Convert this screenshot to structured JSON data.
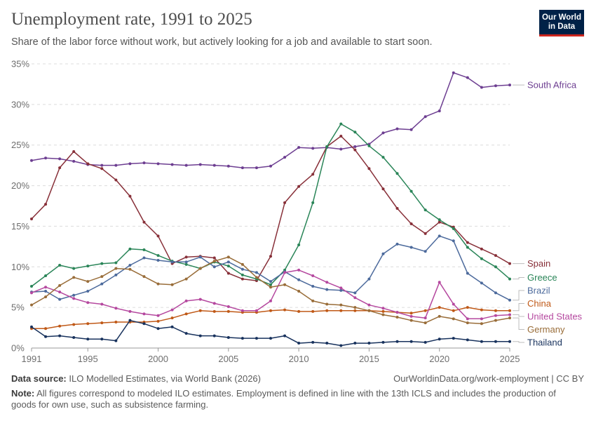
{
  "header": {
    "title": "Unemployment rate, 1991 to 2025",
    "subtitle": "Share of the labor force without work, but actively looking for a job and available to start soon.",
    "logo_line1": "Our World",
    "logo_line2": "in Data"
  },
  "footer": {
    "source_label": "Data source:",
    "source_text": "ILO Modelled Estimates, via World Bank (2026)",
    "url": "OurWorldinData.org/work-employment | CC BY",
    "note_label": "Note:",
    "note_text": "All figures correspond to modeled ILO estimates. Employment is defined in line with the 13th ICLS and includes the production of goods for own use, such as subsistence farming."
  },
  "chart_data": {
    "type": "line",
    "title": "Unemployment rate, 1991 to 2025",
    "xlabel": "",
    "ylabel": "",
    "xlim": [
      1991,
      2025
    ],
    "ylim": [
      0,
      35
    ],
    "grid": true,
    "legend": "right (labels at line ends)",
    "x_ticks": [
      "1991",
      "1995",
      "2000",
      "2005",
      "2010",
      "2015",
      "2020",
      "2025"
    ],
    "y_ticks": [
      "0%",
      "5%",
      "10%",
      "15%",
      "20%",
      "25%",
      "30%",
      "35%"
    ],
    "x": [
      1991,
      1992,
      1993,
      1994,
      1995,
      1996,
      1997,
      1998,
      1999,
      2000,
      2001,
      2002,
      2003,
      2004,
      2005,
      2006,
      2007,
      2008,
      2009,
      2010,
      2011,
      2012,
      2013,
      2014,
      2015,
      2016,
      2017,
      2018,
      2019,
      2020,
      2021,
      2022,
      2023,
      2024,
      2025
    ],
    "series": [
      {
        "name": "South Africa",
        "color": "#6d3e91",
        "values": [
          23.1,
          23.4,
          23.3,
          23.0,
          22.6,
          22.5,
          22.5,
          22.7,
          22.8,
          22.7,
          22.6,
          22.5,
          22.6,
          22.5,
          22.4,
          22.2,
          22.2,
          22.4,
          23.5,
          24.7,
          24.6,
          24.7,
          24.5,
          24.8,
          25.1,
          26.5,
          27.0,
          26.9,
          28.5,
          29.2,
          33.9,
          33.3,
          32.1,
          32.3,
          32.4
        ]
      },
      {
        "name": "Spain",
        "color": "#883039",
        "values": [
          15.9,
          17.7,
          22.2,
          24.2,
          22.7,
          22.1,
          20.7,
          18.7,
          15.5,
          13.8,
          10.4,
          11.2,
          11.3,
          11.1,
          9.2,
          8.5,
          8.3,
          11.3,
          17.9,
          19.9,
          21.4,
          24.8,
          26.1,
          24.4,
          22.1,
          19.6,
          17.2,
          15.3,
          14.1,
          15.5,
          14.9,
          13.0,
          12.2,
          11.4,
          10.4
        ]
      },
      {
        "name": "Greece",
        "color": "#2a8558",
        "values": [
          7.6,
          8.9,
          10.2,
          9.8,
          10.1,
          10.4,
          10.5,
          12.2,
          12.1,
          11.4,
          10.7,
          10.3,
          9.8,
          10.6,
          10.1,
          9.0,
          8.5,
          7.8,
          9.6,
          12.7,
          17.9,
          24.8,
          27.6,
          26.6,
          24.9,
          23.5,
          21.5,
          19.3,
          17.0,
          15.8,
          14.7,
          12.4,
          11.0,
          10.0,
          8.5
        ]
      },
      {
        "name": "Brazil",
        "color": "#4c6a9c",
        "values": [
          6.9,
          7.0,
          6.0,
          6.5,
          7.0,
          7.9,
          9.0,
          10.2,
          11.1,
          10.8,
          10.6,
          10.6,
          11.2,
          10.0,
          10.6,
          9.7,
          9.3,
          8.2,
          9.4,
          8.4,
          7.6,
          7.2,
          7.1,
          6.8,
          8.5,
          11.6,
          12.8,
          12.4,
          11.9,
          13.8,
          13.2,
          9.2,
          8.0,
          6.8,
          5.9
        ]
      },
      {
        "name": "China",
        "color": "#c05917",
        "values": [
          2.4,
          2.4,
          2.7,
          2.9,
          3.0,
          3.1,
          3.2,
          3.2,
          3.2,
          3.3,
          3.7,
          4.2,
          4.6,
          4.5,
          4.5,
          4.4,
          4.4,
          4.6,
          4.7,
          4.5,
          4.5,
          4.6,
          4.6,
          4.6,
          4.6,
          4.5,
          4.4,
          4.3,
          4.6,
          5.0,
          4.6,
          5.0,
          4.7,
          4.6,
          4.6
        ]
      },
      {
        "name": "United States",
        "color": "#b5489f",
        "values": [
          6.8,
          7.5,
          6.9,
          6.1,
          5.6,
          5.4,
          4.9,
          4.5,
          4.2,
          4.0,
          4.7,
          5.8,
          6.0,
          5.5,
          5.1,
          4.6,
          4.6,
          5.8,
          9.3,
          9.6,
          8.9,
          8.1,
          7.4,
          6.2,
          5.3,
          4.9,
          4.4,
          3.9,
          3.7,
          8.1,
          5.4,
          3.6,
          3.6,
          4.0,
          4.1
        ]
      },
      {
        "name": "Germany",
        "color": "#996d39",
        "values": [
          5.3,
          6.3,
          7.7,
          8.7,
          8.2,
          8.8,
          9.8,
          9.7,
          8.8,
          7.9,
          7.8,
          8.5,
          9.8,
          10.7,
          11.2,
          10.3,
          8.7,
          7.5,
          7.8,
          7.0,
          5.8,
          5.4,
          5.3,
          5.0,
          4.6,
          4.1,
          3.8,
          3.4,
          3.1,
          3.9,
          3.6,
          3.1,
          3.0,
          3.4,
          3.7
        ]
      },
      {
        "name": "Thailand",
        "color": "#18325d",
        "values": [
          2.6,
          1.4,
          1.5,
          1.3,
          1.1,
          1.1,
          0.9,
          3.4,
          3.0,
          2.4,
          2.6,
          1.8,
          1.5,
          1.5,
          1.3,
          1.2,
          1.2,
          1.2,
          1.5,
          0.6,
          0.7,
          0.6,
          0.3,
          0.6,
          0.6,
          0.7,
          0.8,
          0.8,
          0.7,
          1.1,
          1.2,
          1.0,
          0.8,
          0.8,
          0.8
        ]
      }
    ]
  }
}
